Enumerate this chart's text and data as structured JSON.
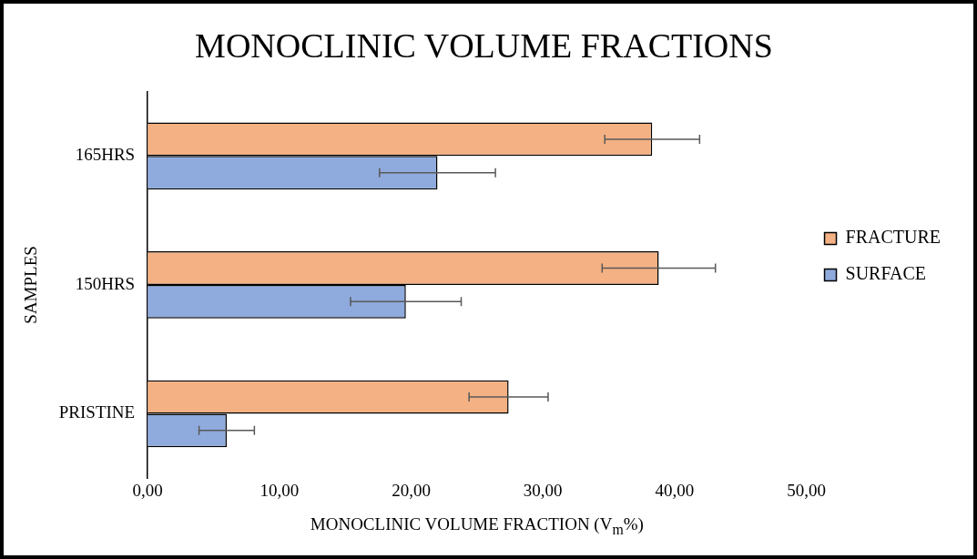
{
  "chart_data": {
    "type": "bar",
    "orientation": "horizontal",
    "title": "MONOCLINIC VOLUME FRACTIONS",
    "xlabel": "MONOCLINIC VOLUME FRACTION (V$_{m}$%)",
    "ylabel": "SAMPLES",
    "categories": [
      "165HRS",
      "150HRS",
      "PRISTINE"
    ],
    "series": [
      {
        "name": "FRACTURE",
        "color": "#f4b183",
        "values": [
          38.3,
          38.8,
          27.4
        ],
        "errors": [
          3.6,
          4.3,
          3.0
        ]
      },
      {
        "name": "SURFACE",
        "color": "#8faadc",
        "values": [
          22.0,
          19.6,
          6.0
        ],
        "errors": [
          4.4,
          4.2,
          2.1
        ]
      }
    ],
    "xlim": [
      0,
      50
    ],
    "xticks": [
      {
        "value": 0,
        "label": "0,00"
      },
      {
        "value": 10,
        "label": "10,00"
      },
      {
        "value": 20,
        "label": "20,00"
      },
      {
        "value": 30,
        "label": "30,00"
      },
      {
        "value": 40,
        "label": "40,00"
      },
      {
        "value": 50,
        "label": "50,00"
      }
    ],
    "legend": "right",
    "grid": false
  }
}
